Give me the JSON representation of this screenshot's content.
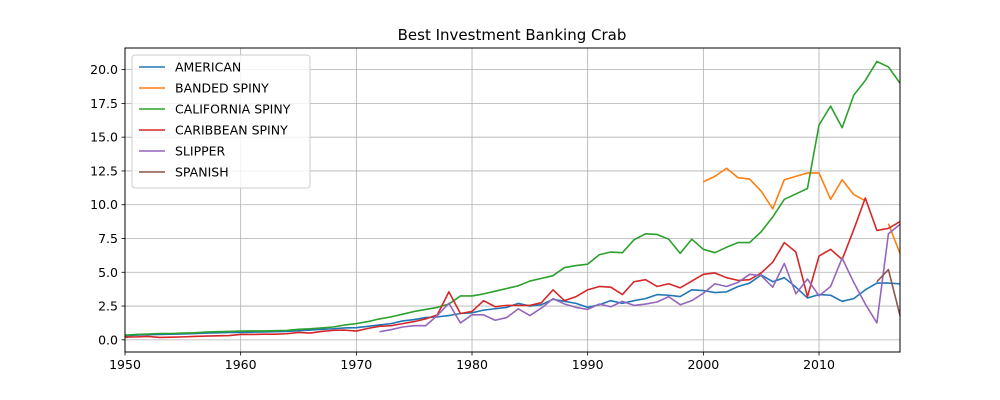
{
  "chart_data": {
    "type": "line",
    "title": "Best Investment Banking Crab",
    "xlabel": "",
    "ylabel": "",
    "xlim": [
      1950,
      2017
    ],
    "ylim": [
      -0.9,
      21.6
    ],
    "x_ticks": [
      1950,
      1960,
      1970,
      1980,
      1990,
      2000,
      2010
    ],
    "y_ticks": [
      "0.0",
      "2.5",
      "5.0",
      "7.5",
      "10.0",
      "12.5",
      "15.0",
      "17.5",
      "20.0"
    ],
    "y_tick_values": [
      0,
      2.5,
      5,
      7.5,
      10,
      12.5,
      15,
      17.5,
      20
    ],
    "grid": true,
    "legend_position": "upper-left",
    "series": [
      {
        "name": "AMERICAN",
        "color": "#1f77b4",
        "points": [
          [
            1950,
            0.3
          ],
          [
            1951,
            0.35
          ],
          [
            1952,
            0.38
          ],
          [
            1953,
            0.4
          ],
          [
            1954,
            0.42
          ],
          [
            1955,
            0.44
          ],
          [
            1956,
            0.46
          ],
          [
            1957,
            0.5
          ],
          [
            1958,
            0.52
          ],
          [
            1959,
            0.55
          ],
          [
            1960,
            0.55
          ],
          [
            1961,
            0.57
          ],
          [
            1962,
            0.58
          ],
          [
            1963,
            0.6
          ],
          [
            1964,
            0.62
          ],
          [
            1965,
            0.68
          ],
          [
            1966,
            0.72
          ],
          [
            1967,
            0.78
          ],
          [
            1968,
            0.82
          ],
          [
            1969,
            0.88
          ],
          [
            1970,
            0.9
          ],
          [
            1971,
            1.0
          ],
          [
            1972,
            1.1
          ],
          [
            1973,
            1.2
          ],
          [
            1974,
            1.4
          ],
          [
            1975,
            1.5
          ],
          [
            1976,
            1.65
          ],
          [
            1977,
            1.7
          ],
          [
            1978,
            1.8
          ],
          [
            1979,
            1.95
          ],
          [
            1980,
            2.0
          ],
          [
            1981,
            2.2
          ],
          [
            1982,
            2.3
          ],
          [
            1983,
            2.4
          ],
          [
            1984,
            2.7
          ],
          [
            1985,
            2.5
          ],
          [
            1986,
            2.6
          ],
          [
            1987,
            3.0
          ],
          [
            1988,
            2.85
          ],
          [
            1989,
            2.7
          ],
          [
            1990,
            2.4
          ],
          [
            1991,
            2.6
          ],
          [
            1992,
            2.9
          ],
          [
            1993,
            2.7
          ],
          [
            1994,
            2.9
          ],
          [
            1995,
            3.05
          ],
          [
            1996,
            3.35
          ],
          [
            1997,
            3.3
          ],
          [
            1998,
            3.2
          ],
          [
            1999,
            3.7
          ],
          [
            2000,
            3.65
          ],
          [
            2001,
            3.5
          ],
          [
            2002,
            3.55
          ],
          [
            2003,
            3.95
          ],
          [
            2004,
            4.2
          ],
          [
            2005,
            4.8
          ],
          [
            2006,
            4.3
          ],
          [
            2007,
            4.6
          ],
          [
            2008,
            3.9
          ],
          [
            2009,
            3.1
          ],
          [
            2010,
            3.35
          ],
          [
            2011,
            3.3
          ],
          [
            2012,
            2.85
          ],
          [
            2013,
            3.05
          ],
          [
            2014,
            3.7
          ],
          [
            2015,
            4.2
          ],
          [
            2016,
            4.2
          ],
          [
            2017,
            4.15
          ]
        ]
      },
      {
        "name": "BANDED SPINY",
        "color": "#ff7f0e",
        "points": [
          [
            2000,
            11.7
          ],
          [
            2001,
            12.1
          ],
          [
            2002,
            12.7
          ],
          [
            2003,
            12.0
          ],
          [
            2004,
            11.9
          ],
          [
            2005,
            11.0
          ],
          [
            2006,
            9.7
          ],
          [
            2007,
            11.85
          ],
          [
            2008,
            12.1
          ],
          [
            2009,
            12.35
          ],
          [
            2010,
            12.35
          ],
          [
            2011,
            10.4
          ],
          [
            2012,
            11.85
          ],
          [
            2013,
            10.75
          ],
          [
            2014,
            10.3
          ],
          [
            null,
            null
          ],
          [
            2016,
            8.6
          ],
          [
            2017,
            6.4
          ]
        ]
      },
      {
        "name": "CALIFORNIA SPINY",
        "color": "#2ca02c",
        "points": [
          [
            1950,
            0.35
          ],
          [
            1951,
            0.4
          ],
          [
            1952,
            0.43
          ],
          [
            1953,
            0.47
          ],
          [
            1954,
            0.47
          ],
          [
            1955,
            0.5
          ],
          [
            1956,
            0.52
          ],
          [
            1957,
            0.58
          ],
          [
            1958,
            0.6
          ],
          [
            1959,
            0.62
          ],
          [
            1960,
            0.65
          ],
          [
            1961,
            0.66
          ],
          [
            1962,
            0.66
          ],
          [
            1963,
            0.68
          ],
          [
            1964,
            0.7
          ],
          [
            1965,
            0.78
          ],
          [
            1966,
            0.82
          ],
          [
            1967,
            0.88
          ],
          [
            1968,
            0.95
          ],
          [
            1969,
            1.1
          ],
          [
            1970,
            1.2
          ],
          [
            1971,
            1.35
          ],
          [
            1972,
            1.55
          ],
          [
            1973,
            1.7
          ],
          [
            1974,
            1.9
          ],
          [
            1975,
            2.1
          ],
          [
            1976,
            2.25
          ],
          [
            1977,
            2.4
          ],
          [
            1978,
            2.65
          ],
          [
            1979,
            3.25
          ],
          [
            1980,
            3.25
          ],
          [
            1981,
            3.4
          ],
          [
            1982,
            3.6
          ],
          [
            1983,
            3.8
          ],
          [
            1984,
            4.0
          ],
          [
            1985,
            4.35
          ],
          [
            1986,
            4.55
          ],
          [
            1987,
            4.75
          ],
          [
            1988,
            5.35
          ],
          [
            1989,
            5.5
          ],
          [
            1990,
            5.6
          ],
          [
            1991,
            6.3
          ],
          [
            1992,
            6.5
          ],
          [
            1993,
            6.45
          ],
          [
            1994,
            7.4
          ],
          [
            1995,
            7.85
          ],
          [
            1996,
            7.8
          ],
          [
            1997,
            7.45
          ],
          [
            1998,
            6.4
          ],
          [
            1999,
            7.45
          ],
          [
            2000,
            6.7
          ],
          [
            2001,
            6.45
          ],
          [
            2002,
            6.85
          ],
          [
            2003,
            7.2
          ],
          [
            2004,
            7.2
          ],
          [
            2005,
            8.0
          ],
          [
            2006,
            9.1
          ],
          [
            2007,
            10.4
          ],
          [
            2008,
            10.8
          ],
          [
            2009,
            11.2
          ],
          [
            2010,
            15.9
          ],
          [
            2011,
            17.3
          ],
          [
            2012,
            15.7
          ],
          [
            2013,
            18.1
          ],
          [
            2014,
            19.2
          ],
          [
            2015,
            20.6
          ],
          [
            2016,
            20.2
          ],
          [
            2017,
            19.0
          ]
        ]
      },
      {
        "name": "CARIBBEAN SPINY",
        "color": "#d62728",
        "points": [
          [
            1950,
            0.2
          ],
          [
            1951,
            0.22
          ],
          [
            1952,
            0.25
          ],
          [
            1953,
            0.18
          ],
          [
            1954,
            0.2
          ],
          [
            1955,
            0.22
          ],
          [
            1956,
            0.25
          ],
          [
            1957,
            0.28
          ],
          [
            1958,
            0.3
          ],
          [
            1959,
            0.32
          ],
          [
            1960,
            0.4
          ],
          [
            1961,
            0.4
          ],
          [
            1962,
            0.42
          ],
          [
            1963,
            0.42
          ],
          [
            1964,
            0.45
          ],
          [
            1965,
            0.55
          ],
          [
            1966,
            0.5
          ],
          [
            1967,
            0.62
          ],
          [
            1968,
            0.7
          ],
          [
            1969,
            0.72
          ],
          [
            1970,
            0.65
          ],
          [
            1971,
            0.85
          ],
          [
            1972,
            1.0
          ],
          [
            1973,
            1.05
          ],
          [
            1974,
            1.2
          ],
          [
            1975,
            1.35
          ],
          [
            1976,
            1.55
          ],
          [
            1977,
            1.85
          ],
          [
            1978,
            3.55
          ],
          [
            1979,
            1.95
          ],
          [
            1980,
            2.1
          ],
          [
            1981,
            2.9
          ],
          [
            1982,
            2.45
          ],
          [
            1983,
            2.55
          ],
          [
            1984,
            2.55
          ],
          [
            1985,
            2.55
          ],
          [
            1986,
            2.75
          ],
          [
            1987,
            3.7
          ],
          [
            1988,
            2.9
          ],
          [
            1989,
            3.2
          ],
          [
            1990,
            3.7
          ],
          [
            1991,
            3.95
          ],
          [
            1992,
            3.9
          ],
          [
            1993,
            3.35
          ],
          [
            1994,
            4.3
          ],
          [
            1995,
            4.45
          ],
          [
            1996,
            3.95
          ],
          [
            1997,
            4.15
          ],
          [
            1998,
            3.85
          ],
          [
            1999,
            4.35
          ],
          [
            2000,
            4.85
          ],
          [
            2001,
            4.95
          ],
          [
            2002,
            4.6
          ],
          [
            2003,
            4.4
          ],
          [
            2004,
            4.45
          ],
          [
            2005,
            4.95
          ],
          [
            2006,
            5.75
          ],
          [
            2007,
            7.2
          ],
          [
            2008,
            6.5
          ],
          [
            2009,
            3.2
          ],
          [
            2010,
            6.2
          ],
          [
            2011,
            6.7
          ],
          [
            2012,
            5.95
          ],
          [
            2013,
            8.15
          ],
          [
            2014,
            10.5
          ],
          [
            2015,
            8.1
          ],
          [
            2016,
            8.25
          ],
          [
            2017,
            8.75
          ]
        ]
      },
      {
        "name": "SLIPPER",
        "color": "#9467bd",
        "points": [
          [
            1972,
            0.6
          ],
          [
            1973,
            0.75
          ],
          [
            1974,
            0.95
          ],
          [
            1975,
            1.05
          ],
          [
            1976,
            1.05
          ],
          [
            1977,
            1.8
          ],
          [
            1978,
            2.7
          ],
          [
            1979,
            1.25
          ],
          [
            1980,
            1.85
          ],
          [
            1981,
            1.85
          ],
          [
            1982,
            1.45
          ],
          [
            1983,
            1.65
          ],
          [
            1984,
            2.3
          ],
          [
            1985,
            1.8
          ],
          [
            1986,
            2.35
          ],
          [
            1987,
            3.05
          ],
          [
            1988,
            2.65
          ],
          [
            1989,
            2.4
          ],
          [
            1990,
            2.25
          ],
          [
            1991,
            2.65
          ],
          [
            1992,
            2.45
          ],
          [
            1993,
            2.85
          ],
          [
            1994,
            2.55
          ],
          [
            1995,
            2.65
          ],
          [
            1996,
            2.8
          ],
          [
            1997,
            3.2
          ],
          [
            1998,
            2.6
          ],
          [
            1999,
            2.9
          ],
          [
            2000,
            3.45
          ],
          [
            2001,
            4.15
          ],
          [
            2002,
            3.95
          ],
          [
            2003,
            4.25
          ],
          [
            2004,
            4.85
          ],
          [
            2005,
            4.75
          ],
          [
            2006,
            3.9
          ],
          [
            2007,
            5.65
          ],
          [
            2008,
            3.4
          ],
          [
            2009,
            4.5
          ],
          [
            2010,
            3.25
          ],
          [
            2011,
            3.95
          ],
          [
            2012,
            6.05
          ],
          [
            2013,
            4.25
          ],
          [
            2014,
            2.65
          ],
          [
            2015,
            1.25
          ],
          [
            2016,
            7.85
          ],
          [
            2017,
            8.55
          ]
        ]
      },
      {
        "name": "SPANISH",
        "color": "#8c564b",
        "points": [
          [
            2015,
            4.3
          ],
          [
            2016,
            5.2
          ],
          [
            2017,
            1.8
          ]
        ]
      }
    ]
  }
}
